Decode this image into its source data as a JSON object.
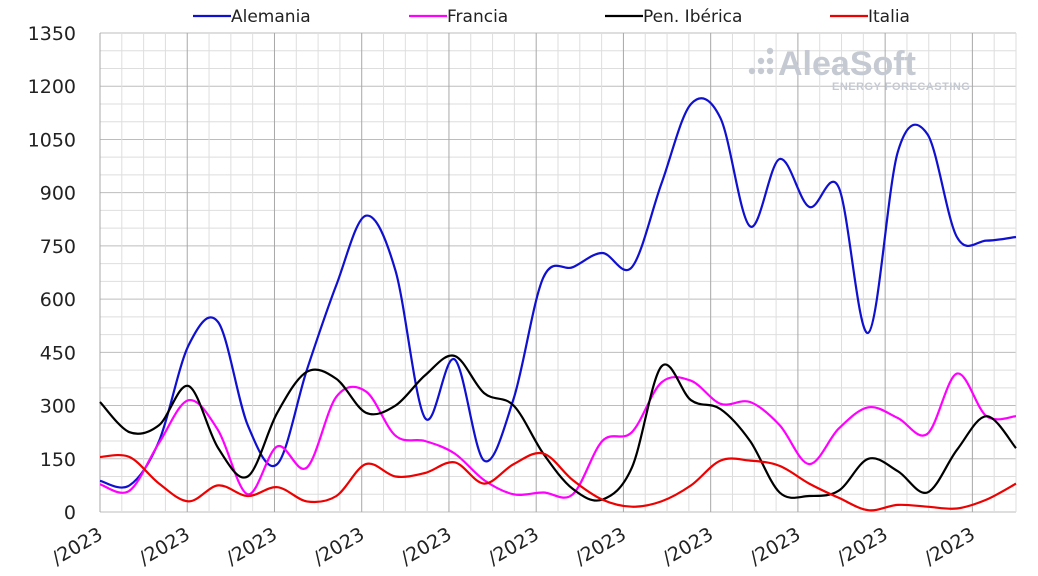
{
  "logo": {
    "name": "AleaSoft",
    "tagline": "ENERGY FORECASTING"
  },
  "chart_data": {
    "type": "line",
    "ylim": [
      0,
      1350
    ],
    "yticks": [
      0,
      150,
      300,
      450,
      600,
      750,
      900,
      1050,
      1200,
      1350
    ],
    "xlim": [
      0,
      21
    ],
    "xtick_positions": [
      0,
      2,
      4,
      6,
      8,
      10,
      12,
      14,
      16,
      18,
      20
    ],
    "xtick_labels": [
      "/2023",
      "/2023",
      "/2023",
      "/2023",
      "/2023",
      "/2023",
      "/2023",
      "/2023",
      "/2023",
      "/2023",
      "/2023"
    ],
    "grid": true,
    "legend_position": "top",
    "series": [
      {
        "name": "Alemania",
        "color": "#1010d0",
        "values": [
          88,
          75,
          200,
          470,
          535,
          245,
          135,
          400,
          640,
          835,
          680,
          265,
          430,
          145,
          320,
          660,
          690,
          730,
          690,
          925,
          1150,
          1110,
          805,
          995,
          860,
          915,
          505,
          1015,
          1065,
          775,
          765,
          775
        ]
      },
      {
        "name": "Francia",
        "color": "#ff00ff",
        "values": [
          78,
          60,
          195,
          315,
          230,
          50,
          185,
          125,
          325,
          340,
          215,
          200,
          165,
          90,
          50,
          55,
          50,
          200,
          225,
          365,
          370,
          305,
          310,
          245,
          135,
          235,
          295,
          265,
          220,
          390,
          270,
          270
        ]
      },
      {
        "name": "Pen. Ibérica",
        "color": "#000000",
        "values": [
          310,
          225,
          245,
          355,
          180,
          100,
          280,
          395,
          375,
          280,
          300,
          385,
          440,
          335,
          300,
          165,
          65,
          35,
          125,
          410,
          315,
          290,
          200,
          55,
          45,
          60,
          150,
          115,
          55,
          175,
          270,
          180
        ]
      },
      {
        "name": "Italia",
        "color": "#ee0000",
        "values": [
          155,
          155,
          80,
          30,
          75,
          45,
          70,
          30,
          45,
          135,
          100,
          110,
          140,
          80,
          135,
          165,
          90,
          35,
          15,
          30,
          75,
          145,
          145,
          130,
          80,
          40,
          5,
          20,
          15,
          10,
          35,
          80
        ]
      }
    ]
  }
}
